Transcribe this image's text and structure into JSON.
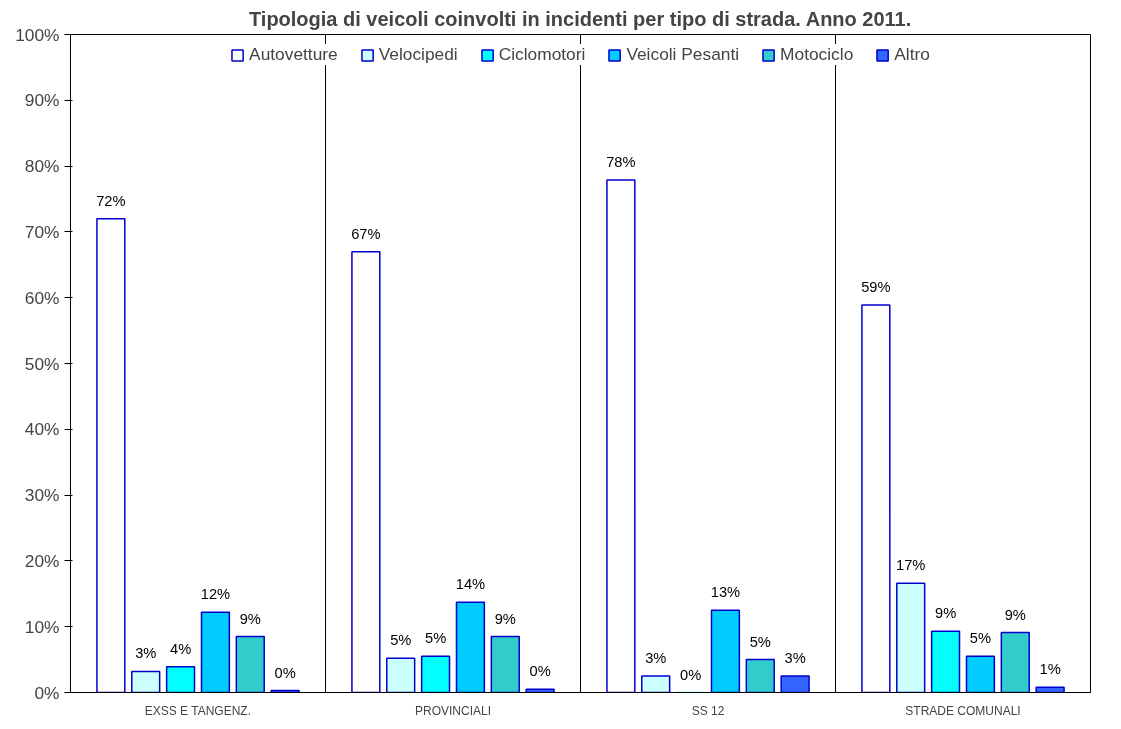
{
  "chart_data": {
    "type": "bar",
    "title": "Tipologia di veicoli coinvolti in incidenti per tipo di strada. Anno 2011.",
    "categories": [
      "EXSS E TANGENZ.",
      "PROVINCIALI",
      "SS 12",
      "STRADE COMUNALI"
    ],
    "series": [
      {
        "name": "Autovetture",
        "color": "#ffffff",
        "values": [
          72.0,
          67.0,
          77.9,
          58.9
        ],
        "value_labels": [
          "72%",
          "67%",
          "78%",
          "59%"
        ]
      },
      {
        "name": "Velocipedi",
        "color": "#ccffff",
        "values": [
          3.2,
          5.2,
          2.5,
          16.6
        ],
        "value_labels": [
          "3%",
          "5%",
          "3%",
          "17%"
        ]
      },
      {
        "name": "Ciclomotori",
        "color": "#00ffff",
        "values": [
          3.9,
          5.5,
          0,
          9.3
        ],
        "value_labels": [
          "4%",
          "5%",
          "0%",
          "9%"
        ]
      },
      {
        "name": "Veicoli Pesanti",
        "color": "#00ccff",
        "values": [
          12.2,
          13.7,
          12.5,
          5.5
        ],
        "value_labels": [
          "12%",
          "14%",
          "13%",
          "5%"
        ]
      },
      {
        "name": "Motociclo",
        "color": "#33cccc",
        "values": [
          8.5,
          8.5,
          5.0,
          9.1
        ],
        "value_labels": [
          "9%",
          "9%",
          "5%",
          "9%"
        ]
      },
      {
        "name": "Altro",
        "color": "#3366ff",
        "values": [
          0.3,
          0.5,
          2.5,
          0.8
        ],
        "value_labels": [
          "0%",
          "0%",
          "3%",
          "1%"
        ]
      }
    ],
    "ylim": [
      0,
      100
    ],
    "yticks": [
      {
        "value": 0,
        "label": "0%"
      },
      {
        "value": 10,
        "label": "10%"
      },
      {
        "value": 20,
        "label": "20%"
      },
      {
        "value": 30,
        "label": "30%"
      },
      {
        "value": 40,
        "label": "40%"
      },
      {
        "value": 50,
        "label": "50%"
      },
      {
        "value": 60,
        "label": "60%"
      },
      {
        "value": 70,
        "label": "70%"
      },
      {
        "value": 80,
        "label": "80%"
      },
      {
        "value": 90,
        "label": "90%"
      },
      {
        "value": 100,
        "label": "100%"
      }
    ],
    "grid": "x",
    "legend": "top"
  }
}
